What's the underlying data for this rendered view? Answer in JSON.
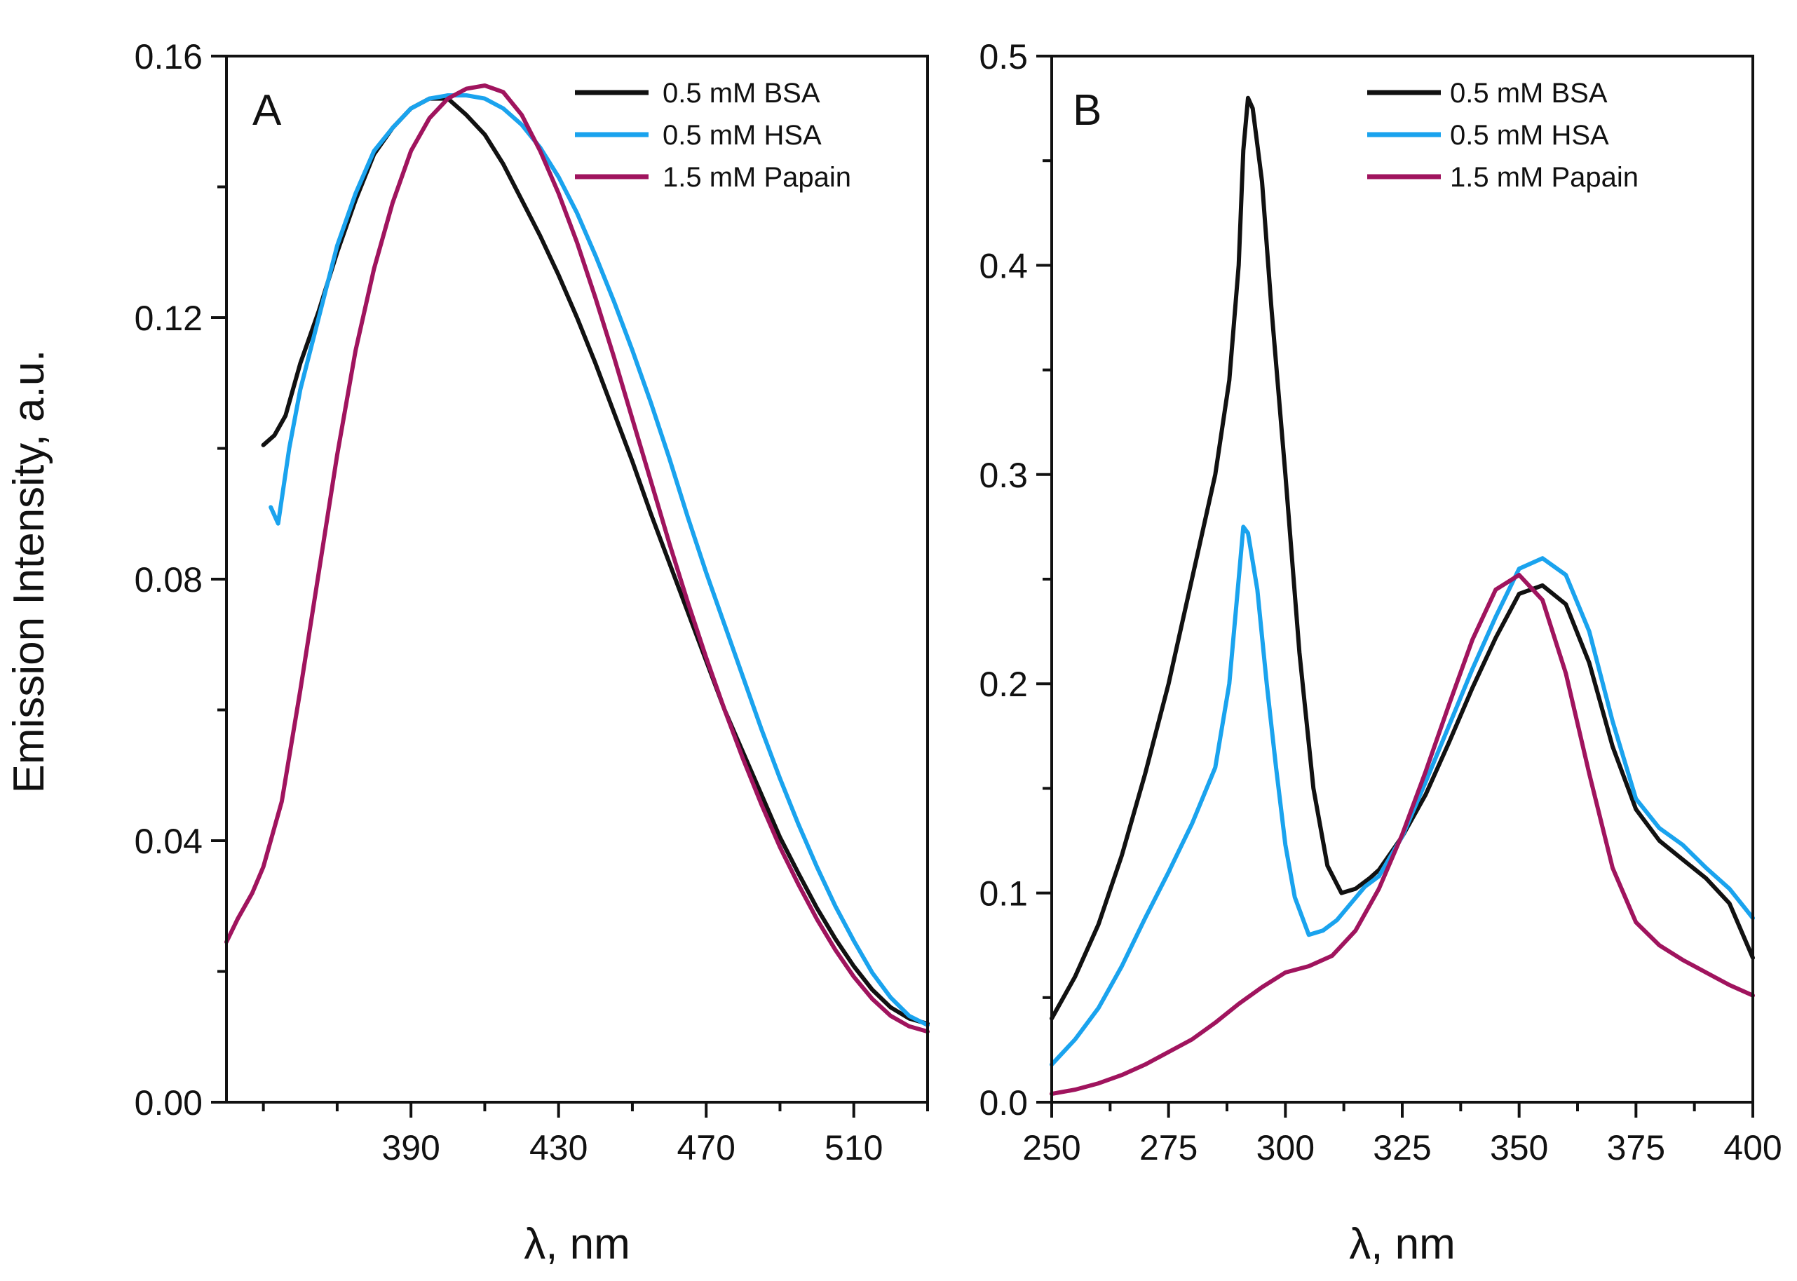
{
  "figure": {
    "ylabel": "Emission Intensity, a.u."
  },
  "chart_data": [
    {
      "type": "line",
      "panel": "A",
      "xlabel": "λ, nm",
      "ylabel": "Emission Intensity, a.u.",
      "xlim": [
        340,
        530
      ],
      "ylim": [
        0,
        0.16
      ],
      "xticks": [
        390,
        430,
        470,
        510
      ],
      "xtick_labels": [
        "390",
        "430",
        "470",
        "510"
      ],
      "yticks": [
        0,
        0.04,
        0.08,
        0.12,
        0.16
      ],
      "ytick_labels": [
        "0.00",
        "0.04",
        "0.08",
        "0.12",
        "0.16"
      ],
      "legend_position": "top-right",
      "series": [
        {
          "name": "0.5 mM BSA",
          "color": "#111111",
          "x": [
            350,
            353,
            356,
            360,
            365,
            370,
            375,
            380,
            385,
            390,
            395,
            400,
            405,
            410,
            415,
            420,
            425,
            430,
            435,
            440,
            445,
            450,
            455,
            460,
            465,
            470,
            475,
            480,
            485,
            490,
            495,
            500,
            505,
            510,
            515,
            520,
            525,
            530
          ],
          "y": [
            0.1005,
            0.102,
            0.105,
            0.113,
            0.121,
            0.13,
            0.138,
            0.145,
            0.149,
            0.152,
            0.1535,
            0.1535,
            0.151,
            0.148,
            0.1435,
            0.138,
            0.1325,
            0.1265,
            0.12,
            0.113,
            0.1055,
            0.098,
            0.09,
            0.0825,
            0.075,
            0.0675,
            0.06,
            0.0535,
            0.047,
            0.0405,
            0.035,
            0.0297,
            0.025,
            0.0208,
            0.0172,
            0.0145,
            0.0128,
            0.012
          ]
        },
        {
          "name": "0.5 mM HSA",
          "color": "#1aa3ee",
          "x": [
            352,
            354,
            357,
            360,
            365,
            370,
            375,
            380,
            385,
            390,
            395,
            400,
            405,
            410,
            415,
            420,
            425,
            430,
            435,
            440,
            445,
            450,
            455,
            460,
            465,
            470,
            475,
            480,
            485,
            490,
            495,
            500,
            505,
            510,
            515,
            520,
            525,
            530
          ],
          "y": [
            0.091,
            0.0885,
            0.1,
            0.109,
            0.12,
            0.131,
            0.139,
            0.1455,
            0.149,
            0.152,
            0.1535,
            0.154,
            0.154,
            0.1535,
            0.152,
            0.1495,
            0.146,
            0.1415,
            0.136,
            0.1295,
            0.1225,
            0.115,
            0.107,
            0.0985,
            0.0895,
            0.081,
            0.073,
            0.065,
            0.057,
            0.0495,
            0.0425,
            0.036,
            0.03,
            0.0247,
            0.0198,
            0.016,
            0.0132,
            0.0118
          ]
        },
        {
          "name": "1.5 mM Papain",
          "color": "#a0145e",
          "x": [
            340,
            343,
            347,
            350,
            355,
            360,
            365,
            370,
            375,
            380,
            385,
            390,
            395,
            400,
            405,
            410,
            415,
            420,
            425,
            430,
            435,
            440,
            445,
            450,
            455,
            460,
            465,
            470,
            475,
            480,
            485,
            490,
            495,
            500,
            505,
            510,
            515,
            520,
            525,
            530
          ],
          "y": [
            0.0245,
            0.028,
            0.032,
            0.036,
            0.046,
            0.063,
            0.081,
            0.099,
            0.115,
            0.1275,
            0.1375,
            0.1455,
            0.1505,
            0.1535,
            0.155,
            0.1555,
            0.1545,
            0.151,
            0.1455,
            0.139,
            0.1315,
            0.123,
            0.114,
            0.1045,
            0.095,
            0.0855,
            0.0765,
            0.068,
            0.06,
            0.0525,
            0.0455,
            0.039,
            0.0333,
            0.028,
            0.0233,
            0.0192,
            0.0158,
            0.0132,
            0.0116,
            0.0108
          ]
        }
      ]
    },
    {
      "type": "line",
      "panel": "B",
      "xlabel": "λ, nm",
      "ylabel": "",
      "xlim": [
        250,
        400
      ],
      "ylim": [
        0,
        0.5
      ],
      "xticks": [
        250,
        275,
        300,
        325,
        350,
        375,
        400
      ],
      "xtick_labels": [
        "250",
        "275",
        "300",
        "325",
        "350",
        "375",
        "400"
      ],
      "yticks": [
        0,
        0.1,
        0.2,
        0.3,
        0.4,
        0.5
      ],
      "ytick_labels": [
        "0.0",
        "0.1",
        "0.2",
        "0.3",
        "0.4",
        "0.5"
      ],
      "legend_position": "top-right",
      "series": [
        {
          "name": "0.5 mM BSA",
          "color": "#111111",
          "x": [
            250,
            255,
            260,
            265,
            270,
            275,
            280,
            285,
            288,
            290,
            291,
            292,
            293,
            295,
            297,
            300,
            303,
            306,
            309,
            312,
            315,
            318,
            320,
            325,
            330,
            335,
            340,
            345,
            350,
            355,
            360,
            365,
            370,
            375,
            380,
            385,
            390,
            395,
            400
          ],
          "y": [
            0.04,
            0.06,
            0.085,
            0.118,
            0.157,
            0.2,
            0.25,
            0.3,
            0.345,
            0.4,
            0.455,
            0.48,
            0.475,
            0.44,
            0.38,
            0.3,
            0.215,
            0.15,
            0.113,
            0.1,
            0.102,
            0.107,
            0.111,
            0.127,
            0.147,
            0.172,
            0.198,
            0.222,
            0.243,
            0.247,
            0.238,
            0.21,
            0.17,
            0.14,
            0.125,
            0.116,
            0.107,
            0.095,
            0.069
          ]
        },
        {
          "name": "0.5 mM HSA",
          "color": "#1aa3ee",
          "x": [
            250,
            255,
            260,
            265,
            270,
            275,
            280,
            285,
            288,
            290,
            291,
            292,
            294,
            296,
            298,
            300,
            302,
            305,
            308,
            311,
            314,
            317,
            320,
            325,
            330,
            335,
            340,
            345,
            350,
            355,
            360,
            365,
            370,
            375,
            380,
            385,
            390,
            395,
            400
          ],
          "y": [
            0.018,
            0.03,
            0.045,
            0.065,
            0.088,
            0.11,
            0.133,
            0.16,
            0.2,
            0.25,
            0.275,
            0.272,
            0.245,
            0.2,
            0.16,
            0.123,
            0.098,
            0.08,
            0.082,
            0.087,
            0.095,
            0.103,
            0.108,
            0.127,
            0.153,
            0.18,
            0.207,
            0.232,
            0.255,
            0.26,
            0.252,
            0.225,
            0.182,
            0.145,
            0.131,
            0.123,
            0.112,
            0.102,
            0.088
          ]
        },
        {
          "name": "1.5 mM Papain",
          "color": "#a0145e",
          "x": [
            250,
            255,
            260,
            265,
            270,
            275,
            280,
            285,
            290,
            295,
            300,
            305,
            310,
            315,
            320,
            325,
            330,
            335,
            340,
            345,
            350,
            355,
            360,
            365,
            370,
            375,
            380,
            385,
            390,
            395,
            400
          ],
          "y": [
            0.004,
            0.006,
            0.009,
            0.013,
            0.018,
            0.024,
            0.03,
            0.038,
            0.047,
            0.055,
            0.062,
            0.065,
            0.07,
            0.082,
            0.102,
            0.128,
            0.158,
            0.19,
            0.221,
            0.245,
            0.252,
            0.24,
            0.205,
            0.157,
            0.112,
            0.086,
            0.075,
            0.068,
            0.062,
            0.056,
            0.051
          ]
        }
      ]
    }
  ]
}
